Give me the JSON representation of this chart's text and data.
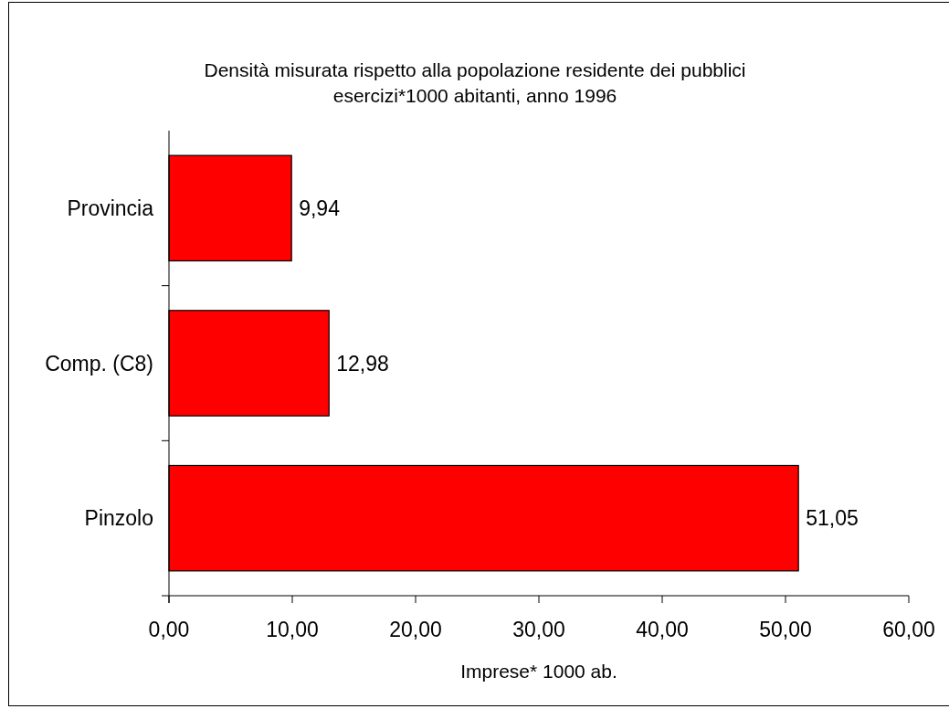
{
  "chart_data": {
    "type": "bar",
    "orientation": "horizontal",
    "title": "Densità misurata rispetto alla popolazione residente dei pubblici esercizi*1000 abitanti, anno 1996",
    "xlabel": "Imprese* 1000 ab.",
    "categories": [
      "Provincia",
      "Comp. (C8)",
      "Pinzolo"
    ],
    "values": [
      9.94,
      12.98,
      51.05
    ],
    "value_labels": [
      "9,94",
      "12,98",
      "51,05"
    ],
    "color": "#ff0000",
    "xlim": [
      0,
      60
    ],
    "xticks": [
      {
        "value": 0,
        "label": "0,00"
      },
      {
        "value": 10,
        "label": "10,00"
      },
      {
        "value": 20,
        "label": "20,00"
      },
      {
        "value": 30,
        "label": "30,00"
      },
      {
        "value": 40,
        "label": "40,00"
      },
      {
        "value": 50,
        "label": "50,00"
      },
      {
        "value": 60,
        "label": "60,00"
      }
    ]
  }
}
